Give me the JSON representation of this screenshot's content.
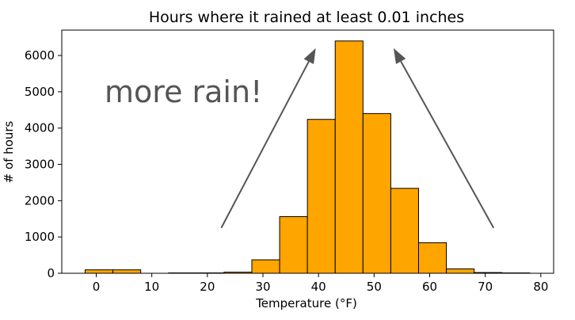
{
  "chart_data": {
    "type": "bar",
    "title": "Hours where it rained at least 0.01 inches",
    "xlabel": "Temperature (°F)",
    "ylabel": "# of hours",
    "xlim": [
      -6.2,
      82.3
    ],
    "ylim": [
      0,
      6700
    ],
    "xticks": [
      0,
      10,
      20,
      30,
      40,
      50,
      60,
      70,
      80
    ],
    "yticks": [
      0,
      1000,
      2000,
      3000,
      4000,
      5000,
      6000
    ],
    "bin_edges": [
      -2.0,
      3.0,
      8.0,
      13.0,
      18.0,
      23.0,
      28.0,
      33.0,
      38.0,
      43.0,
      48.0,
      53.0,
      58.0,
      63.0,
      68.0,
      73.0,
      78.0
    ],
    "values": [
      95,
      95,
      0,
      10,
      10,
      30,
      370,
      1560,
      4240,
      6400,
      4400,
      2340,
      840,
      120,
      20,
      10
    ],
    "bar_color": "#ffa500",
    "edge_color": "#000000",
    "grid": false,
    "legend": "none",
    "annotations": [
      {
        "text": "more rain!",
        "x": 1.5,
        "y": 5000
      },
      {
        "type": "arrow",
        "from": [
          22.5,
          1250
        ],
        "to": [
          39.5,
          6200
        ]
      },
      {
        "type": "arrow",
        "from": [
          71.5,
          1250
        ],
        "to": [
          53.5,
          6200
        ]
      }
    ],
    "colors": {
      "annotation": "#555555"
    }
  }
}
